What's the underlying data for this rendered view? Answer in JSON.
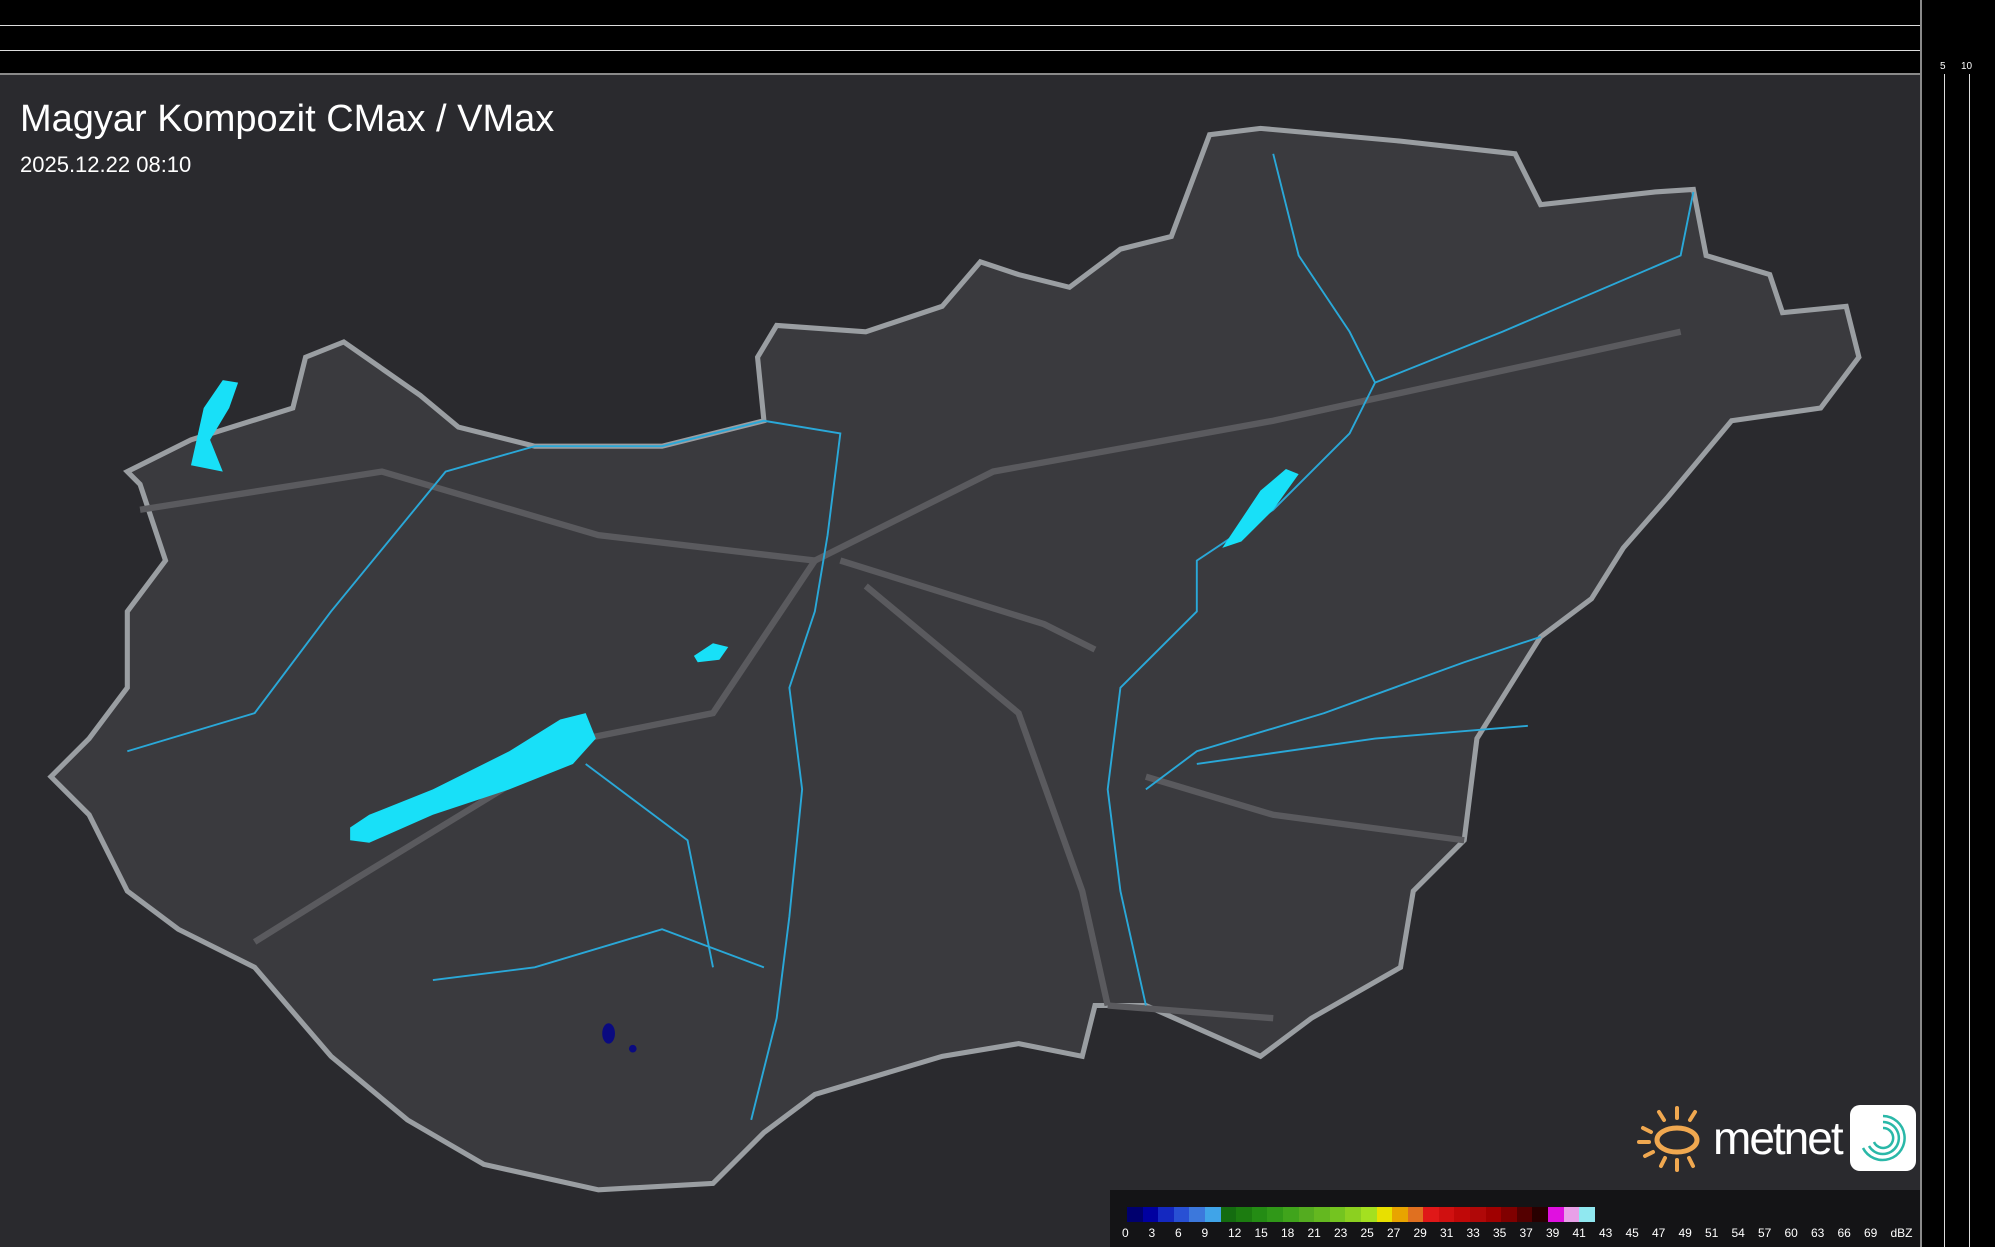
{
  "header": {
    "title": "Magyar Kompozit CMax / VMax",
    "timestamp": "2025.12.22 08:10"
  },
  "scale": {
    "top_labels": [
      "10",
      "5"
    ],
    "right_labels": [
      "5",
      "10"
    ]
  },
  "logo": {
    "text": "metnet",
    "icon": "metnet-sun-icon",
    "app_icon": "spiral-icon"
  },
  "colors": {
    "background": "#2a2a2e",
    "country": "#3a3a3e",
    "border": "#9a9ea2",
    "rivers": "#2aa8d8",
    "lakes": "#18e0f8",
    "roads": "#5a5a5e"
  },
  "legend": {
    "unit": "dBZ",
    "labels": [
      "0",
      "3",
      "6",
      "9",
      "12",
      "15",
      "18",
      "21",
      "23",
      "25",
      "27",
      "29",
      "31",
      "33",
      "35",
      "37",
      "39",
      "41",
      "43",
      "45",
      "47",
      "49",
      "51",
      "54",
      "57",
      "60",
      "63",
      "66",
      "69"
    ],
    "colors": [
      "#00006e",
      "#0000a0",
      "#1428c0",
      "#2850d4",
      "#3c78dc",
      "#40a4e8",
      "#146c10",
      "#1c7c10",
      "#248c14",
      "#309818",
      "#40a41c",
      "#54ac20",
      "#64b820",
      "#74c420",
      "#8cd020",
      "#a4e020",
      "#e8e000",
      "#e8a400",
      "#e07020",
      "#e01818",
      "#d01010",
      "#c00808",
      "#b00808",
      "#a00000",
      "#800000",
      "#540000",
      "#280000",
      "#e010e0",
      "#e8a0e8",
      "#90e8f0"
    ]
  }
}
